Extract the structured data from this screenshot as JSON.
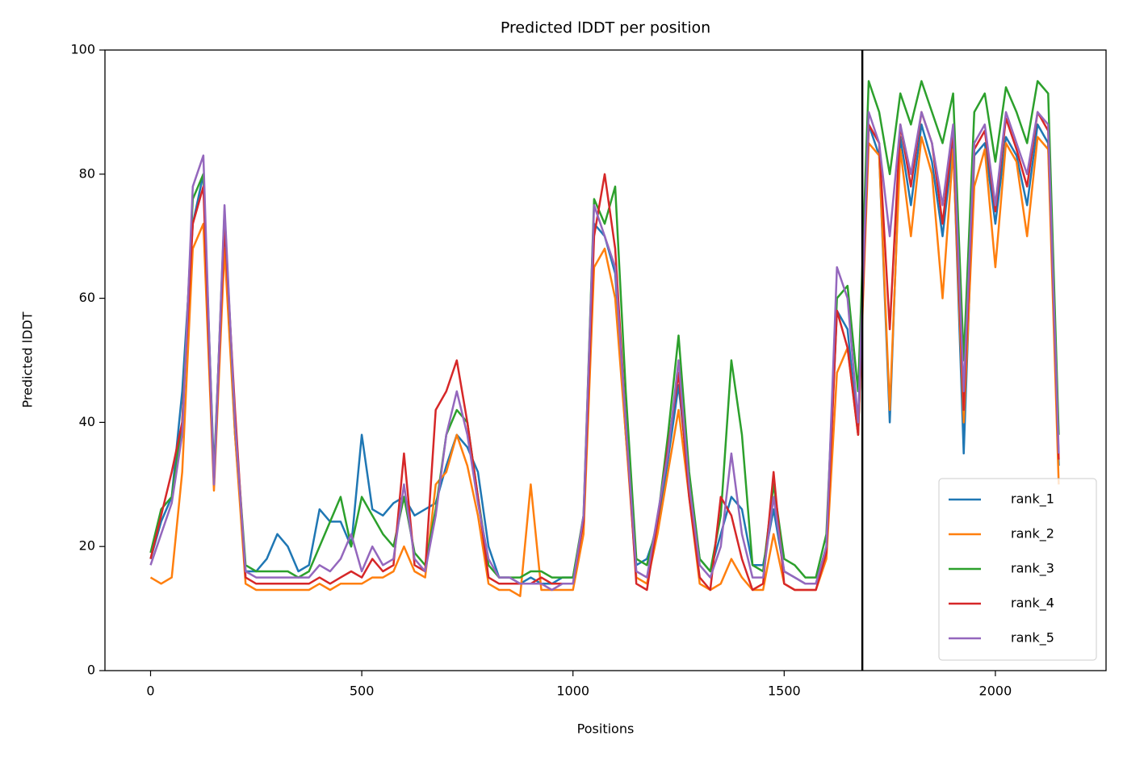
{
  "chart_data": {
    "type": "line",
    "title": "Predicted lDDT per position",
    "xlabel": "Positions",
    "ylabel": "Predicted lDDT",
    "x": [
      0,
      25,
      50,
      75,
      100,
      125,
      150,
      175,
      200,
      225,
      250,
      275,
      300,
      325,
      350,
      375,
      400,
      425,
      450,
      475,
      500,
      525,
      550,
      575,
      600,
      625,
      650,
      675,
      700,
      725,
      750,
      775,
      800,
      825,
      850,
      875,
      900,
      925,
      950,
      975,
      1000,
      1025,
      1050,
      1075,
      1100,
      1125,
      1150,
      1175,
      1200,
      1225,
      1250,
      1275,
      1300,
      1325,
      1350,
      1375,
      1400,
      1425,
      1450,
      1475,
      1500,
      1525,
      1550,
      1575,
      1600,
      1625,
      1650,
      1675,
      1700,
      1725,
      1750,
      1775,
      1800,
      1825,
      1850,
      1875,
      1900,
      1925,
      1950,
      1975,
      2000,
      2025,
      2050,
      2075,
      2100,
      2125,
      2150
    ],
    "series": [
      {
        "name": "rank_1",
        "color": "#1f77b4",
        "values": [
          18,
          24,
          28,
          45,
          72,
          80,
          32,
          72,
          38,
          16,
          16,
          18,
          22,
          20,
          16,
          17,
          26,
          24,
          24,
          20,
          38,
          26,
          25,
          27,
          28,
          25,
          26,
          27,
          33,
          38,
          36,
          32,
          20,
          15,
          15,
          14,
          15,
          14,
          14,
          15,
          15,
          24,
          72,
          70,
          64,
          38,
          17,
          18,
          23,
          34,
          46,
          30,
          18,
          16,
          22,
          28,
          26,
          17,
          17,
          26,
          16,
          15,
          14,
          14,
          20,
          58,
          55,
          38,
          88,
          83,
          40,
          86,
          75,
          88,
          82,
          70,
          85,
          35,
          83,
          85,
          72,
          86,
          83,
          75,
          88,
          85,
          33
        ]
      },
      {
        "name": "rank_2",
        "color": "#ff7f0e",
        "values": [
          15,
          14,
          15,
          32,
          68,
          72,
          29,
          68,
          38,
          14,
          13,
          13,
          13,
          13,
          13,
          13,
          14,
          13,
          14,
          14,
          14,
          15,
          15,
          16,
          20,
          16,
          15,
          30,
          32,
          38,
          33,
          25,
          14,
          13,
          13,
          12,
          30,
          13,
          13,
          13,
          13,
          22,
          65,
          68,
          60,
          38,
          15,
          14,
          22,
          32,
          42,
          28,
          14,
          13,
          14,
          18,
          15,
          13,
          13,
          22,
          14,
          13,
          13,
          13,
          18,
          48,
          52,
          38,
          85,
          83,
          42,
          84,
          70,
          86,
          80,
          60,
          84,
          40,
          78,
          84,
          65,
          85,
          82,
          70,
          86,
          84,
          30
        ]
      },
      {
        "name": "rank_3",
        "color": "#2ca02c",
        "values": [
          19,
          26,
          28,
          40,
          76,
          80,
          31,
          74,
          40,
          17,
          16,
          16,
          16,
          16,
          15,
          16,
          20,
          24,
          28,
          20,
          28,
          25,
          22,
          20,
          28,
          19,
          17,
          26,
          38,
          42,
          40,
          28,
          17,
          15,
          15,
          15,
          16,
          16,
          15,
          15,
          15,
          25,
          76,
          72,
          78,
          45,
          18,
          17,
          24,
          38,
          54,
          32,
          18,
          16,
          25,
          50,
          38,
          17,
          16,
          30,
          18,
          17,
          15,
          15,
          22,
          60,
          62,
          45,
          95,
          90,
          80,
          93,
          88,
          95,
          90,
          85,
          93,
          50,
          90,
          93,
          82,
          94,
          90,
          85,
          95,
          93,
          38
        ]
      },
      {
        "name": "rank_4",
        "color": "#d62728",
        "values": [
          18,
          25,
          32,
          40,
          72,
          78,
          30,
          72,
          42,
          15,
          14,
          14,
          14,
          14,
          14,
          14,
          15,
          14,
          15,
          16,
          15,
          18,
          16,
          17,
          35,
          17,
          16,
          42,
          45,
          50,
          40,
          28,
          15,
          14,
          14,
          14,
          14,
          15,
          14,
          14,
          14,
          24,
          70,
          80,
          68,
          40,
          14,
          13,
          24,
          36,
          48,
          28,
          15,
          13,
          28,
          25,
          18,
          13,
          14,
          32,
          14,
          13,
          13,
          13,
          19,
          58,
          52,
          38,
          88,
          85,
          55,
          88,
          78,
          90,
          85,
          72,
          87,
          42,
          84,
          87,
          74,
          89,
          84,
          78,
          90,
          87,
          34
        ]
      },
      {
        "name": "rank_5",
        "color": "#9467bd",
        "values": [
          17,
          22,
          27,
          38,
          78,
          83,
          30,
          75,
          40,
          16,
          15,
          15,
          15,
          15,
          15,
          15,
          17,
          16,
          18,
          22,
          16,
          20,
          17,
          18,
          30,
          18,
          16,
          25,
          38,
          45,
          38,
          27,
          18,
          15,
          15,
          14,
          14,
          14,
          13,
          14,
          14,
          25,
          75,
          70,
          65,
          40,
          16,
          15,
          25,
          35,
          50,
          30,
          17,
          15,
          20,
          35,
          22,
          15,
          15,
          28,
          16,
          15,
          14,
          14,
          20,
          65,
          60,
          40,
          90,
          85,
          70,
          88,
          80,
          90,
          85,
          75,
          88,
          45,
          85,
          88,
          75,
          90,
          85,
          80,
          90,
          88,
          35
        ]
      }
    ],
    "vlines": [
      1685
    ],
    "vline_color": "#000000",
    "xlim": [
      -108,
      2262
    ],
    "ylim": [
      0,
      100
    ],
    "xticks": [
      0,
      500,
      1000,
      1500,
      2000
    ],
    "yticks": [
      0,
      20,
      40,
      60,
      80,
      100
    ],
    "legend": "lower right"
  }
}
